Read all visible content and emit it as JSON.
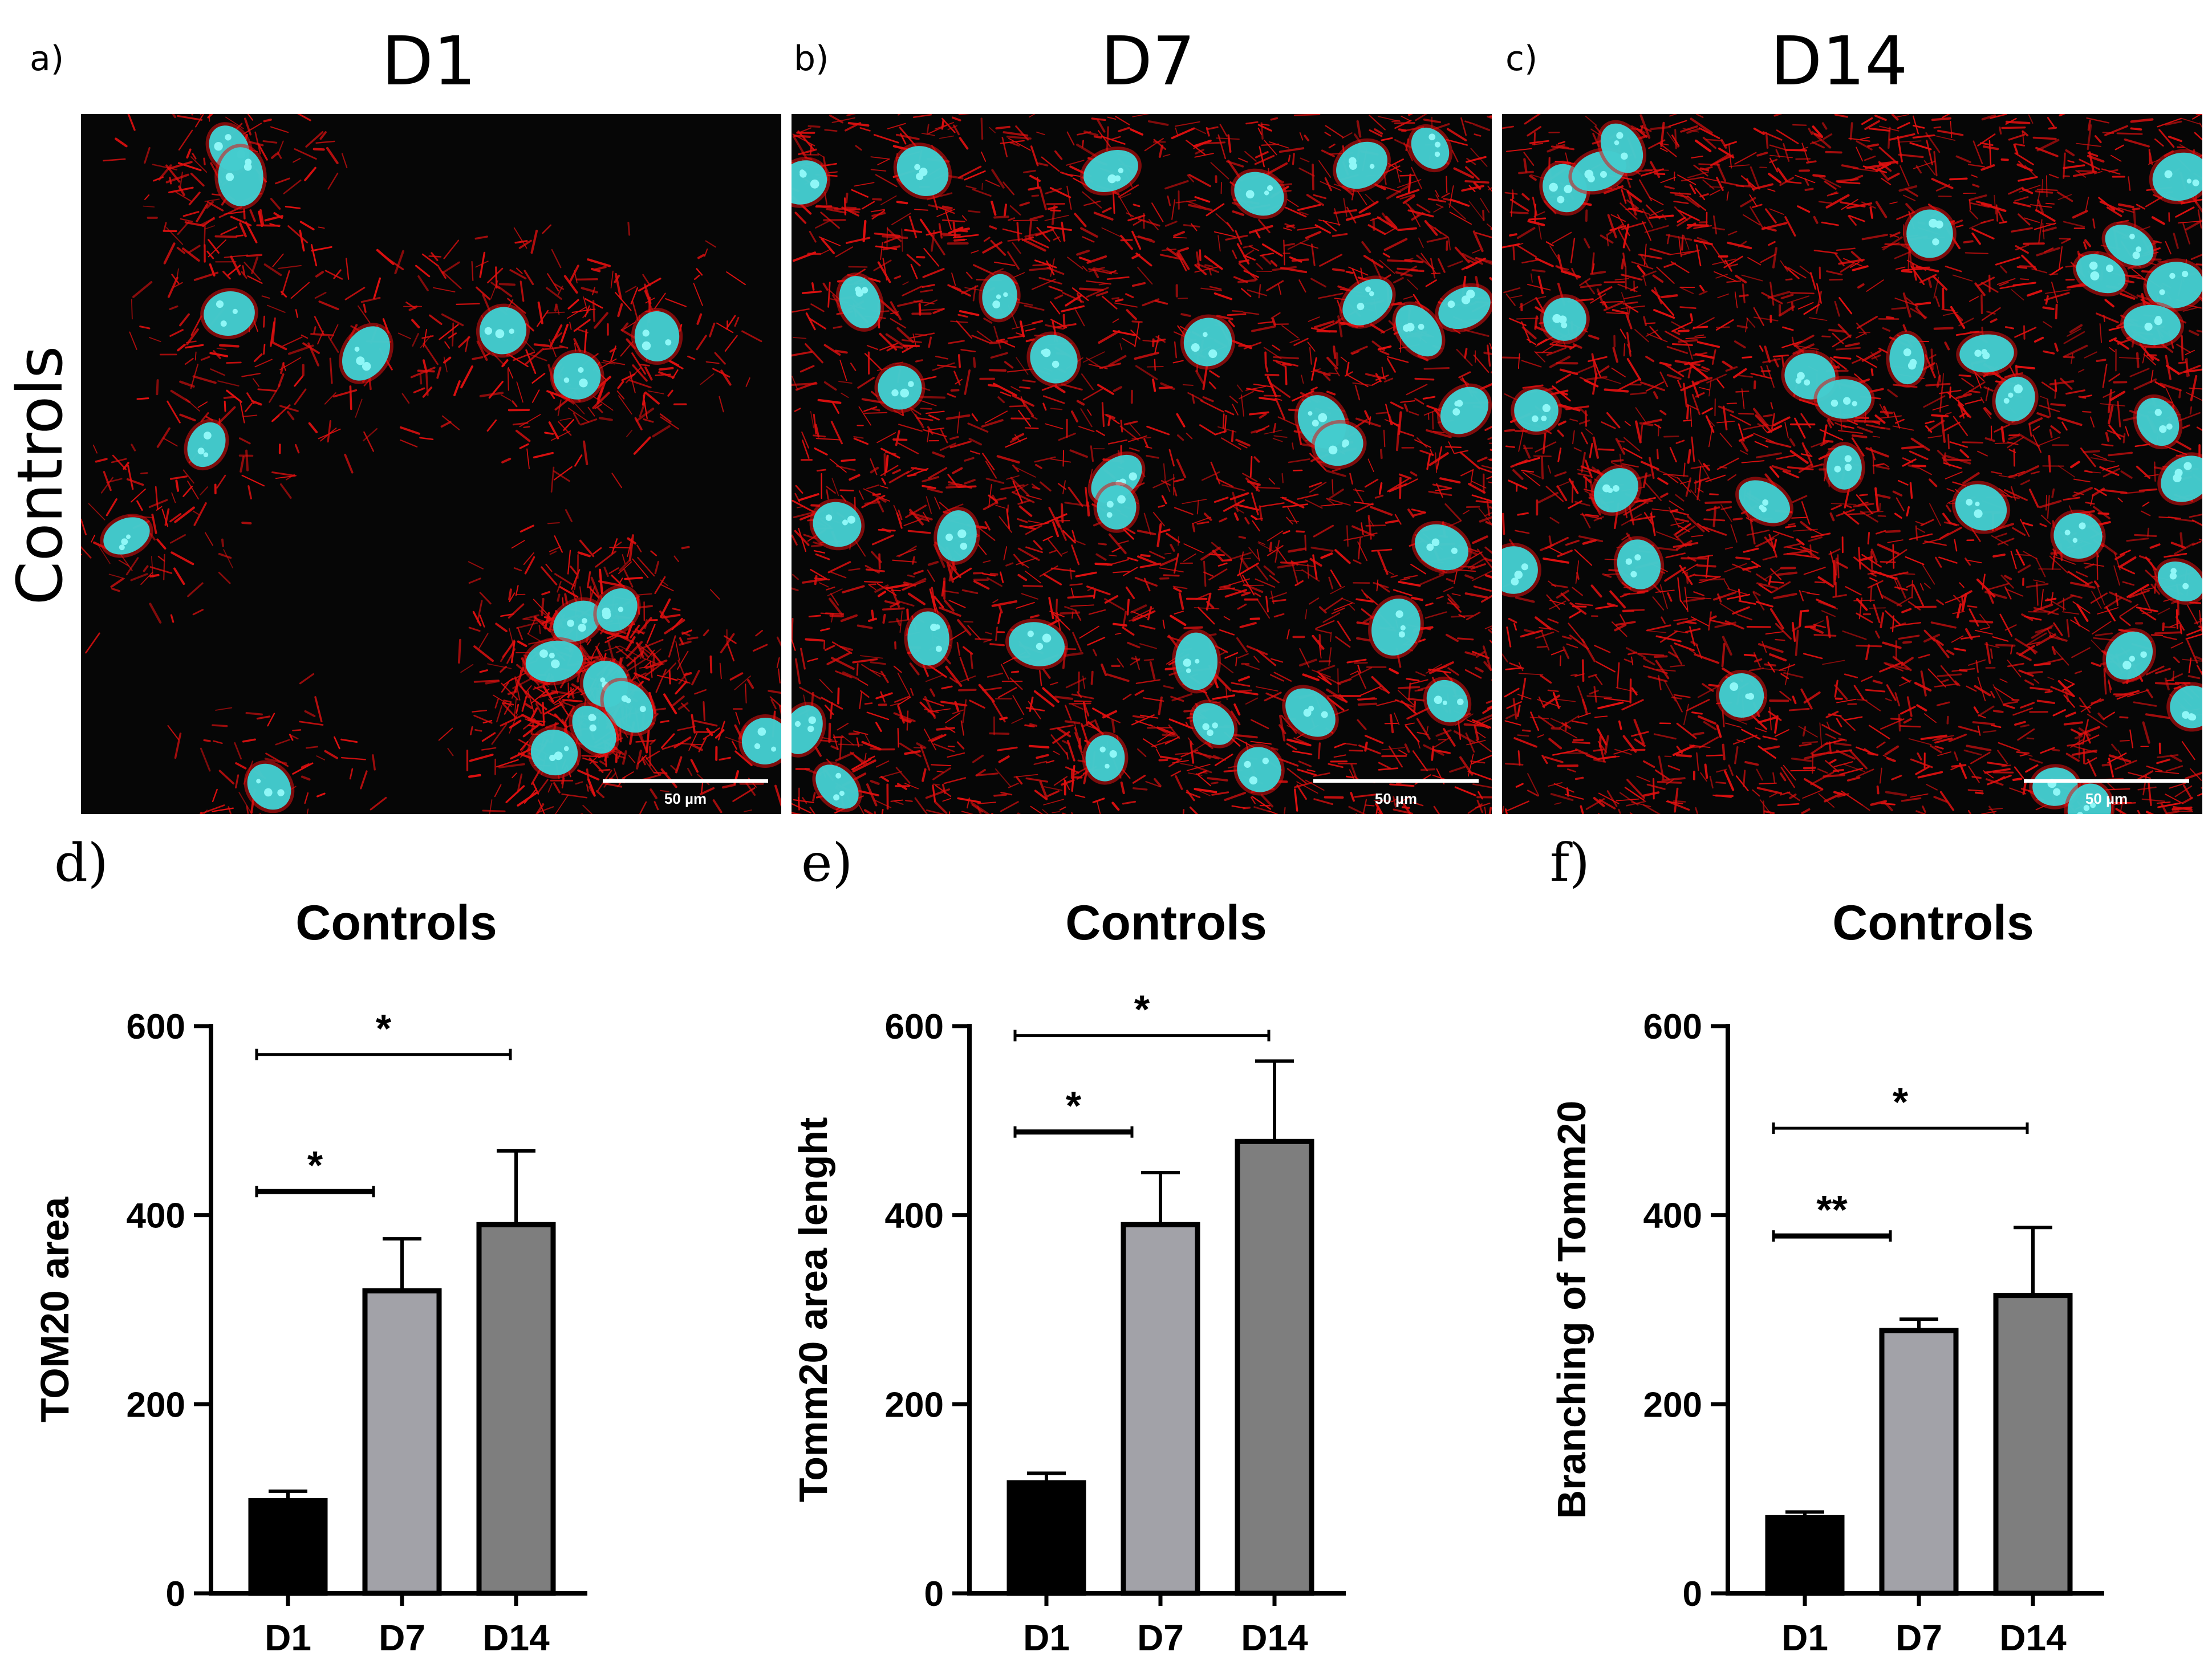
{
  "panels_top": [
    {
      "letter": "a)",
      "title": "D1",
      "scale_label": "50 µm"
    },
    {
      "letter": "b)",
      "title": "D7",
      "scale_label": "50 µm"
    },
    {
      "letter": "c)",
      "title": "D14",
      "scale_label": "50 µm"
    }
  ],
  "row_label": "Controls",
  "colors": {
    "mito": "#e01010",
    "nucleus": "#3fd2d4",
    "background": "#060606",
    "bar_d1": "#000000",
    "bar_d7": "#a2a2a8",
    "bar_d14": "#7e7e7e"
  },
  "chart_data": [
    {
      "letter": "d)",
      "type": "bar",
      "title": "Controls",
      "ylabel": "TOM20 area",
      "categories": [
        "D1",
        "D7",
        "D14"
      ],
      "values": [
        98,
        320,
        390
      ],
      "errors": [
        10,
        55,
        78
      ],
      "ylim": [
        0,
        600
      ],
      "yticks": [
        0,
        200,
        400,
        600
      ],
      "significance": [
        {
          "from": 0,
          "to": 1,
          "y": 425,
          "label": "*"
        },
        {
          "from": 0,
          "to": 2,
          "y": 570,
          "label": "*"
        }
      ]
    },
    {
      "letter": "e)",
      "type": "bar",
      "title": "Controls",
      "ylabel": "Tomm20 area lenght",
      "categories": [
        "D1",
        "D7",
        "D14"
      ],
      "values": [
        117,
        390,
        478
      ],
      "errors": [
        10,
        55,
        85
      ],
      "ylim": [
        0,
        600
      ],
      "yticks": [
        0,
        200,
        400,
        600
      ],
      "significance": [
        {
          "from": 0,
          "to": 1,
          "y": 488,
          "label": "*"
        },
        {
          "from": 0,
          "to": 2,
          "y": 590,
          "label": "*"
        }
      ]
    },
    {
      "letter": "f)",
      "type": "bar",
      "title": "Controls",
      "ylabel": "Branching of Tomm20",
      "categories": [
        "D1",
        "D7",
        "D14"
      ],
      "values": [
        80,
        278,
        315
      ],
      "errors": [
        6,
        12,
        72
      ],
      "ylim": [
        0,
        600
      ],
      "yticks": [
        0,
        200,
        400,
        600
      ],
      "significance": [
        {
          "from": 0,
          "to": 1,
          "y": 378,
          "label": "**"
        },
        {
          "from": 0,
          "to": 2,
          "y": 492,
          "label": "*"
        }
      ]
    }
  ]
}
